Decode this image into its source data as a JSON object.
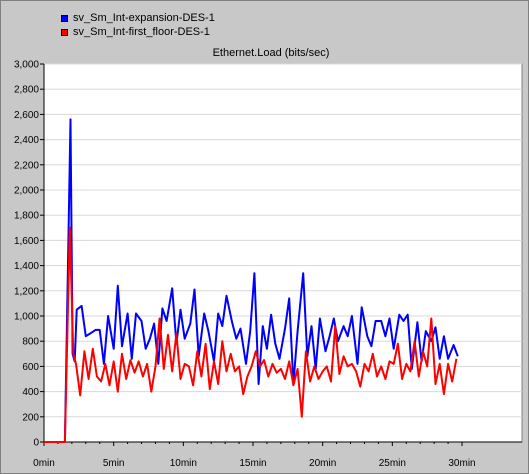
{
  "colors": {
    "window_bg": "#c8c8c8",
    "plot_bg": "#ffffff",
    "grid": "#d8d8d8",
    "series_blue": "#0000ff",
    "series_red": "#ff0000"
  },
  "chart_data": {
    "type": "line",
    "title": "Ethernet.Load (bits/sec)",
    "xlabel": "",
    "ylabel": "",
    "xlim": [
      0,
      30
    ],
    "ylim": [
      0,
      3000
    ],
    "x_unit": "min",
    "x_ticks": [
      0,
      5,
      10,
      15,
      20,
      25,
      30
    ],
    "x_tick_labels": [
      "0min",
      "5min",
      "10min",
      "15min",
      "20min",
      "25min",
      "30min"
    ],
    "y_ticks": [
      0,
      200,
      400,
      600,
      800,
      1000,
      1200,
      1400,
      1600,
      1800,
      2000,
      2200,
      2400,
      2600,
      2800,
      3000
    ],
    "y_tick_labels": [
      "0",
      "200",
      "400",
      "600",
      "800",
      "1,000",
      "1,200",
      "1,400",
      "1,600",
      "1,800",
      "2,000",
      "2,200",
      "2,400",
      "2,600",
      "2,800",
      "3,000"
    ],
    "grid": true,
    "legend": "top-left",
    "series": [
      {
        "name": "sv_Sm_Int-expansion-DES-1",
        "color": "#0000ff",
        "points": [
          [
            0,
            0
          ],
          [
            1.5,
            0
          ],
          [
            1.9,
            2560
          ],
          [
            2.05,
            700
          ],
          [
            2.2,
            640
          ],
          [
            2.35,
            1050
          ],
          [
            2.7,
            1080
          ],
          [
            3.0,
            840
          ],
          [
            3.3,
            860
          ],
          [
            3.7,
            890
          ],
          [
            4.0,
            890
          ],
          [
            4.3,
            620
          ],
          [
            4.6,
            1000
          ],
          [
            5.0,
            740
          ],
          [
            5.3,
            1240
          ],
          [
            5.6,
            760
          ],
          [
            6.0,
            1020
          ],
          [
            6.3,
            660
          ],
          [
            6.6,
            1020
          ],
          [
            7.0,
            960
          ],
          [
            7.3,
            740
          ],
          [
            7.6,
            820
          ],
          [
            7.9,
            940
          ],
          [
            8.2,
            620
          ],
          [
            8.5,
            1060
          ],
          [
            8.8,
            960
          ],
          [
            9.2,
            1220
          ],
          [
            9.5,
            780
          ],
          [
            9.8,
            1050
          ],
          [
            10.1,
            820
          ],
          [
            10.5,
            940
          ],
          [
            10.8,
            1210
          ],
          [
            11.1,
            680
          ],
          [
            11.5,
            1020
          ],
          [
            11.8,
            880
          ],
          [
            12.2,
            640
          ],
          [
            12.5,
            1020
          ],
          [
            12.8,
            920
          ],
          [
            13.1,
            1160
          ],
          [
            13.5,
            950
          ],
          [
            13.8,
            820
          ],
          [
            14.1,
            900
          ],
          [
            14.5,
            620
          ],
          [
            14.8,
            880
          ],
          [
            15.1,
            1340
          ],
          [
            15.4,
            460
          ],
          [
            15.7,
            920
          ],
          [
            16.0,
            740
          ],
          [
            16.3,
            1010
          ],
          [
            16.6,
            780
          ],
          [
            16.9,
            660
          ],
          [
            17.3,
            900
          ],
          [
            17.6,
            1140
          ],
          [
            17.9,
            460
          ],
          [
            18.2,
            880
          ],
          [
            18.6,
            1340
          ],
          [
            18.9,
            680
          ],
          [
            19.2,
            920
          ],
          [
            19.5,
            580
          ],
          [
            19.8,
            980
          ],
          [
            20.2,
            720
          ],
          [
            20.5,
            840
          ],
          [
            20.8,
            980
          ],
          [
            21.1,
            800
          ],
          [
            21.5,
            920
          ],
          [
            21.8,
            840
          ],
          [
            22.1,
            1000
          ],
          [
            22.5,
            620
          ],
          [
            22.8,
            1070
          ],
          [
            23.2,
            840
          ],
          [
            23.5,
            760
          ],
          [
            23.8,
            960
          ],
          [
            24.2,
            960
          ],
          [
            24.5,
            840
          ],
          [
            24.8,
            980
          ],
          [
            25.1,
            740
          ],
          [
            25.5,
            1010
          ],
          [
            25.8,
            960
          ],
          [
            26.1,
            1010
          ],
          [
            26.4,
            580
          ],
          [
            26.8,
            950
          ],
          [
            27.1,
            640
          ],
          [
            27.4,
            880
          ],
          [
            27.8,
            800
          ],
          [
            28.1,
            910
          ],
          [
            28.4,
            660
          ],
          [
            28.7,
            840
          ],
          [
            29.0,
            660
          ],
          [
            29.4,
            770
          ],
          [
            29.7,
            680
          ]
        ]
      },
      {
        "name": "sv_Sm_Int-first_floor-DES-1",
        "color": "#ff0000",
        "points": [
          [
            0,
            0
          ],
          [
            1.5,
            0
          ],
          [
            1.85,
            1700
          ],
          [
            2.1,
            700
          ],
          [
            2.3,
            620
          ],
          [
            2.6,
            370
          ],
          [
            2.9,
            720
          ],
          [
            3.2,
            500
          ],
          [
            3.5,
            740
          ],
          [
            3.8,
            520
          ],
          [
            4.1,
            480
          ],
          [
            4.4,
            620
          ],
          [
            4.7,
            450
          ],
          [
            5.0,
            640
          ],
          [
            5.3,
            400
          ],
          [
            5.6,
            700
          ],
          [
            5.9,
            500
          ],
          [
            6.2,
            650
          ],
          [
            6.5,
            550
          ],
          [
            6.8,
            640
          ],
          [
            7.1,
            520
          ],
          [
            7.4,
            620
          ],
          [
            7.7,
            400
          ],
          [
            8.0,
            600
          ],
          [
            8.3,
            980
          ],
          [
            8.6,
            580
          ],
          [
            8.9,
            850
          ],
          [
            9.2,
            560
          ],
          [
            9.5,
            860
          ],
          [
            9.8,
            500
          ],
          [
            10.1,
            620
          ],
          [
            10.4,
            600
          ],
          [
            10.7,
            450
          ],
          [
            11.0,
            720
          ],
          [
            11.3,
            520
          ],
          [
            11.6,
            780
          ],
          [
            11.9,
            420
          ],
          [
            12.2,
            640
          ],
          [
            12.5,
            460
          ],
          [
            12.8,
            800
          ],
          [
            13.1,
            560
          ],
          [
            13.4,
            700
          ],
          [
            13.7,
            560
          ],
          [
            14.0,
            600
          ],
          [
            14.3,
            380
          ],
          [
            14.6,
            520
          ],
          [
            14.9,
            600
          ],
          [
            15.2,
            720
          ],
          [
            15.5,
            600
          ],
          [
            15.8,
            650
          ],
          [
            16.1,
            520
          ],
          [
            16.4,
            620
          ],
          [
            16.7,
            550
          ],
          [
            17.0,
            580
          ],
          [
            17.3,
            500
          ],
          [
            17.6,
            640
          ],
          [
            17.9,
            450
          ],
          [
            18.2,
            580
          ],
          [
            18.5,
            200
          ],
          [
            18.8,
            720
          ],
          [
            19.1,
            480
          ],
          [
            19.4,
            600
          ],
          [
            19.7,
            500
          ],
          [
            20.0,
            560
          ],
          [
            20.3,
            600
          ],
          [
            20.6,
            480
          ],
          [
            20.9,
            920
          ],
          [
            21.2,
            540
          ],
          [
            21.5,
            680
          ],
          [
            21.8,
            600
          ],
          [
            22.1,
            620
          ],
          [
            22.4,
            560
          ],
          [
            22.7,
            440
          ],
          [
            23.0,
            620
          ],
          [
            23.3,
            560
          ],
          [
            23.6,
            700
          ],
          [
            23.9,
            520
          ],
          [
            24.2,
            600
          ],
          [
            24.5,
            500
          ],
          [
            24.8,
            640
          ],
          [
            25.1,
            620
          ],
          [
            25.4,
            780
          ],
          [
            25.7,
            500
          ],
          [
            26.0,
            620
          ],
          [
            26.3,
            560
          ],
          [
            26.6,
            800
          ],
          [
            26.9,
            520
          ],
          [
            27.2,
            720
          ],
          [
            27.5,
            600
          ],
          [
            27.8,
            980
          ],
          [
            28.1,
            460
          ],
          [
            28.4,
            620
          ],
          [
            28.7,
            380
          ],
          [
            29.0,
            620
          ],
          [
            29.3,
            480
          ],
          [
            29.6,
            660
          ]
        ]
      }
    ]
  }
}
